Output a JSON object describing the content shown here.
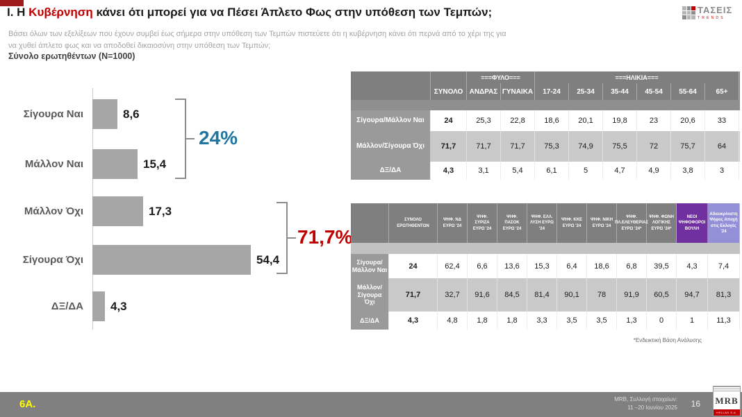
{
  "header": {
    "title_prefix": "Ι. Η ",
    "title_highlight": "Κυβέρνηση",
    "title_suffix": " κάνει ότι μπορεί για να Πέσει Άπλετο Φως στην υπόθεση των Τεμπών;",
    "question_line1": "Βάσει όλων των εξελίξεων που έχουν συμβεί έως σήμερα στην υπόθεση των Τεμπών πιστεύετε ότι η κυβέρνηση κάνει ότι περνά από το χέρι της για",
    "question_line2": "να χυθεί άπλετο φως και να αποδοθεί δικαιοσύνη στην υπόθεση των Τεμπών;",
    "base_label": "Σύνολο ερωτηθέντων (N=1000)",
    "logo_text": "ΤΑΣΕΙΣ",
    "logo_sub": "TRENDS"
  },
  "chart_data": {
    "type": "bar",
    "orientation": "horizontal",
    "title": "Ι. Η Κυβέρνηση κάνει ότι μπορεί για να Πέσει Άπλετο Φως στην υπόθεση των Τεμπών;",
    "categories": [
      "Σίγουρα Ναι",
      "Μάλλον Ναι",
      "Μάλλον Όχι",
      "Σίγουρα Όχι",
      "ΔΞ/ΔΑ"
    ],
    "values": [
      8.6,
      15.4,
      17.3,
      54.4,
      4.3
    ],
    "labels": [
      "8,6",
      "15,4",
      "17,3",
      "54,4",
      "4,3"
    ],
    "xlim": [
      0,
      60
    ],
    "grid": false,
    "bar_color": "#a6a6a6",
    "annotations": [
      {
        "text": "24%",
        "color": "#2076a0",
        "groups": [
          "Σίγουρα Ναι",
          "Μάλλον Ναι"
        ]
      },
      {
        "text": "71,7%",
        "color": "#c00000",
        "groups": [
          "Μάλλον Όχι",
          "Σίγουρα Όχι"
        ]
      }
    ]
  },
  "table1": {
    "group_gender": "===ΦΥΛΟ===",
    "group_age": "===ΗΛΙΚΙΑ===",
    "columns": [
      "ΣΥΝΟΛΟ",
      "ΑΝΔΡΑΣ",
      "ΓΥΝΑΙΚΑ",
      "17-24",
      "25-34",
      "35-44",
      "45-54",
      "55-64",
      "65+"
    ],
    "rows": [
      {
        "label": "Σίγουρα/Μάλλον Ναι",
        "values": [
          "24",
          "25,3",
          "22,8",
          "18,6",
          "20,1",
          "19,8",
          "23",
          "20,6",
          "33"
        ]
      },
      {
        "label": "Μάλλον/Σίγουρα Όχι",
        "values": [
          "71,7",
          "71,7",
          "71,7",
          "75,3",
          "74,9",
          "75,5",
          "72",
          "75,7",
          "64"
        ]
      },
      {
        "label": "ΔΞ/ΔΑ",
        "values": [
          "4,3",
          "3,1",
          "5,4",
          "6,1",
          "5",
          "4,7",
          "4,9",
          "3,8",
          "3"
        ]
      }
    ]
  },
  "table2": {
    "columns": [
      "ΣΥΝΟΛΟ ΕΡΩΤΗΘΕΝΤΩΝ",
      "ΨΗΦ. ΝΔ ΕΥΡΩ '24",
      "ΨΗΦ. ΣΥΡΙΖΑ ΕΥΡΩ '24",
      "ΨΗΦ. ΠΑΣΟΚ ΕΥΡΩ '24",
      "ΨΗΦ. ΕΛΛ. ΛΥΣΗ ΕΥΡΩ '24",
      "ΨΗΦ. ΚΚΕ ΕΥΡΩ '24",
      "ΨΗΦ. ΝΙΚΗ ΕΥΡΩ '24",
      "ΨΗΦ. ΠΛ.ΕΛΕΥΘΕΡΙΑΣ ΕΥΡΩ '24*",
      "ΨΗΦ. ΦΩΝΗ ΛΟΓΙΚΗΣ ΕΥΡΩ '24*",
      "ΝΕΟΙ ΨΗΦΟΦΟΡΟΙ ΒΟΥΛΗ",
      "Αδιευκρίνιστη Ψήφος Αποχή στις Εκλογές '24"
    ],
    "rows": [
      {
        "label": "Σίγουρα/Μάλλον Ναι",
        "values": [
          "24",
          "62,4",
          "6,6",
          "13,6",
          "15,3",
          "6,4",
          "18,6",
          "6,8",
          "39,5",
          "4,3",
          "7,4"
        ]
      },
      {
        "label": "Μάλλον/Σίγουρα Όχι",
        "values": [
          "71,7",
          "32,7",
          "91,6",
          "84,5",
          "81,4",
          "90,1",
          "78",
          "91,9",
          "60,5",
          "94,7",
          "81,3"
        ]
      },
      {
        "label": "ΔΞ/ΔΑ",
        "values": [
          "4,3",
          "4,8",
          "1,8",
          "1,8",
          "3,3",
          "3,5",
          "3,5",
          "1,3",
          "0",
          "1",
          "11,3"
        ]
      }
    ],
    "footnote": "*Ενδεικτική Βάση Ανάλυσης"
  },
  "footer": {
    "slide_code": "6Α.",
    "source_line1": "MRB, Συλλογή στοιχείων:",
    "source_line2": "11 –20 Ιουνίου 2025",
    "page_number": "16",
    "logo": "MRB",
    "logo_sub": "HELLAS S.A."
  }
}
